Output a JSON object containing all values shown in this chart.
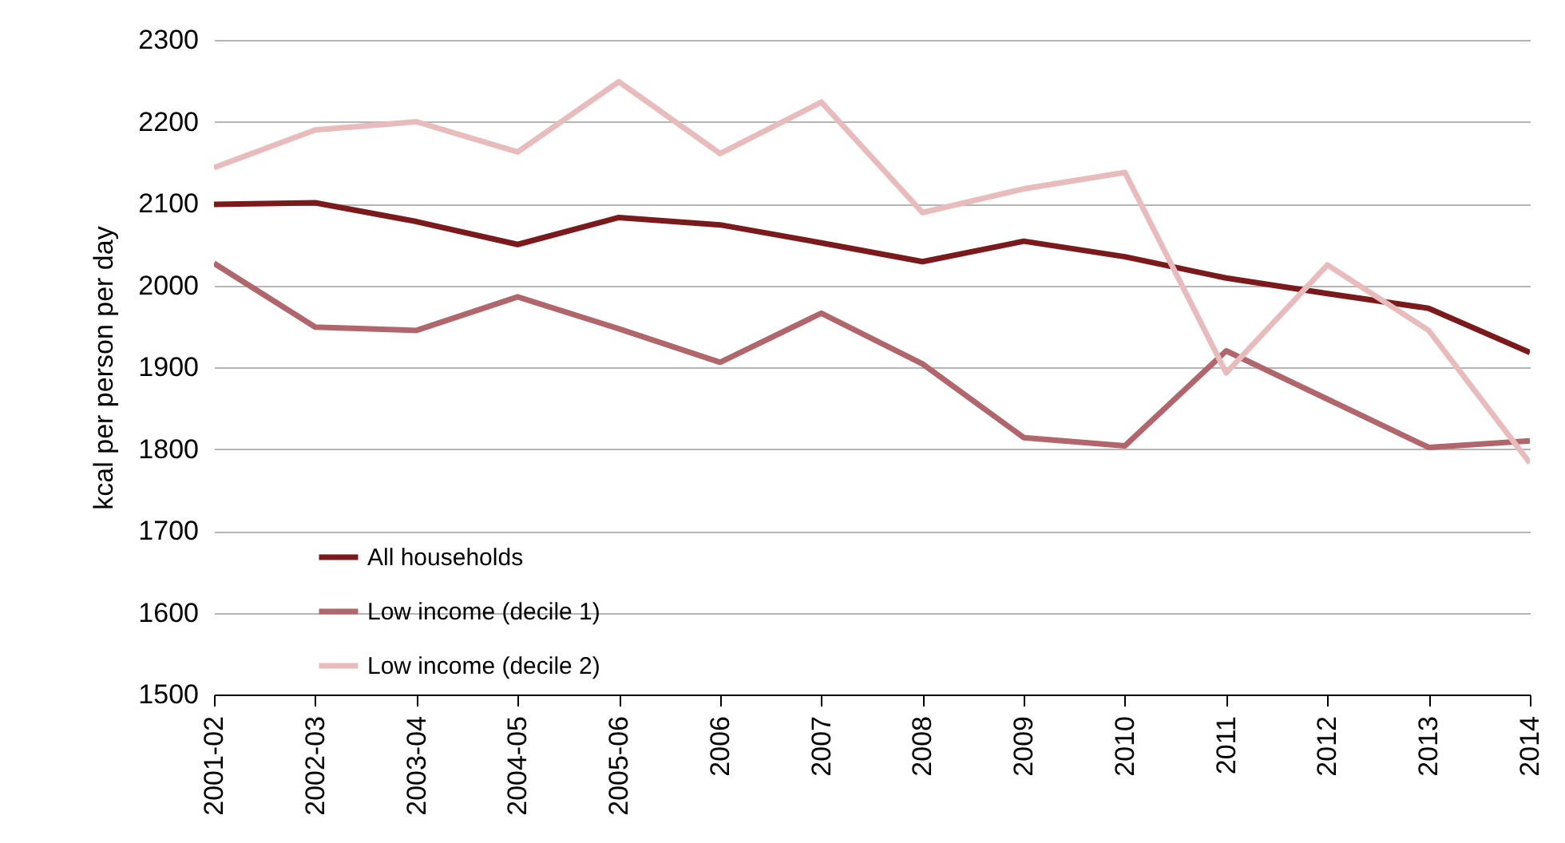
{
  "chart_data": {
    "type": "line",
    "ylabel": "kcal per person per day",
    "categories": [
      "2001-02",
      "2002-03",
      "2003-04",
      "2004-05",
      "2005-06",
      "2006",
      "2007",
      "2008",
      "2009",
      "2010",
      "2011",
      "2012",
      "2013",
      "2014"
    ],
    "series": [
      {
        "name": "All households",
        "color": "#7b1a1c",
        "values": [
          2099,
          2101,
          2078,
          2050,
          2083,
          2074,
          2052,
          2029,
          2054,
          2035,
          2009,
          1990,
          1972,
          1918
        ]
      },
      {
        "name": "Low income (decile 1)",
        "color": "#b0666a",
        "values": [
          2027,
          1949,
          1945,
          1986,
          1947,
          1906,
          1966,
          1904,
          1814,
          1804,
          1920,
          1861,
          1802,
          1810
        ]
      },
      {
        "name": "Low income (decile 2)",
        "color": "#e8bcbc",
        "values": [
          2144,
          2190,
          2200,
          2163,
          2249,
          2161,
          2224,
          2089,
          2118,
          2138,
          1893,
          2025,
          1945,
          1783
        ]
      }
    ],
    "ylim": [
      1500,
      2300
    ],
    "yticks": [
      1500,
      1600,
      1700,
      1800,
      1900,
      2000,
      2100,
      2200,
      2300
    ],
    "grid": "y",
    "legend": "bottom left",
    "marker": "none",
    "line_style": "solid"
  }
}
